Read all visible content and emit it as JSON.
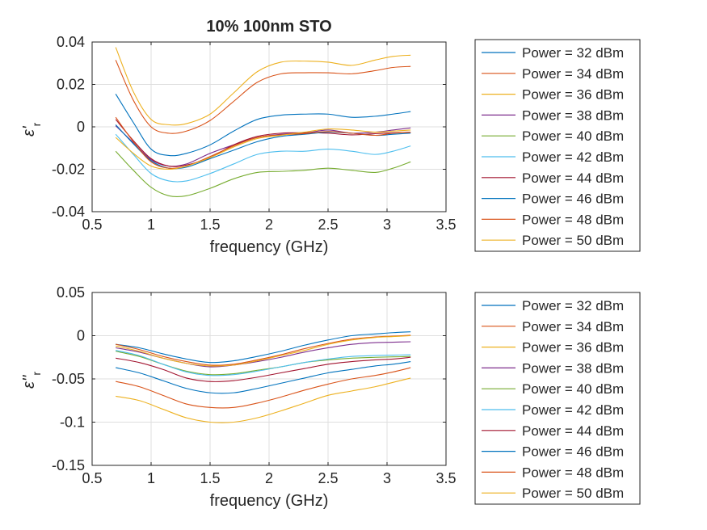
{
  "figure": {
    "title": "10% 100nm STO"
  },
  "chart_data": [
    {
      "type": "line",
      "title": "10% 100nm STO",
      "xlabel": "frequency (GHz)",
      "ylabel": "ε'",
      "ylabel_sub": "r",
      "xlim": [
        0.5,
        3.5
      ],
      "ylim": [
        -0.04,
        0.04
      ],
      "xticks": [
        0.5,
        1,
        1.5,
        2,
        2.5,
        3,
        3.5
      ],
      "xtick_labels": [
        "0.5",
        "1",
        "1.5",
        "2",
        "2.5",
        "3",
        "3.5"
      ],
      "yticks": [
        -0.04,
        -0.02,
        0,
        0.02,
        0.04
      ],
      "ytick_labels": [
        "-0.04",
        "-0.02",
        "0",
        "0.02",
        "0.04"
      ],
      "grid": true,
      "legend_position": "outside-right",
      "series": [
        {
          "name": "Power = 32 dBm",
          "color": "#0072BD",
          "x": [
            0.7,
            0.85,
            1.0,
            1.15,
            1.3,
            1.5,
            1.7,
            1.9,
            2.1,
            2.3,
            2.5,
            2.7,
            2.9,
            3.05,
            3.2
          ],
          "y": [
            0.0155,
            0.002,
            -0.0105,
            -0.0135,
            -0.0125,
            -0.0085,
            -0.002,
            0.0035,
            0.0055,
            0.006,
            0.006,
            0.0045,
            0.005,
            0.006,
            0.0072
          ]
        },
        {
          "name": "Power = 34 dBm",
          "color": "#D95319",
          "x": [
            0.7,
            0.85,
            1.0,
            1.15,
            1.3,
            1.5,
            1.7,
            1.9,
            2.1,
            2.3,
            2.5,
            2.7,
            2.9,
            3.05,
            3.2
          ],
          "y": [
            0.0315,
            0.0125,
            0.0,
            -0.003,
            -0.002,
            0.003,
            0.012,
            0.021,
            0.025,
            0.0255,
            0.0255,
            0.025,
            0.0265,
            0.028,
            0.0285
          ]
        },
        {
          "name": "Power = 36 dBm",
          "color": "#EDB120",
          "x": [
            0.7,
            0.85,
            1.0,
            1.15,
            1.3,
            1.5,
            1.7,
            1.9,
            2.1,
            2.3,
            2.5,
            2.7,
            2.9,
            3.05,
            3.2
          ],
          "y": [
            0.0375,
            0.0165,
            0.0035,
            0.001,
            0.0015,
            0.006,
            0.016,
            0.026,
            0.0305,
            0.031,
            0.0305,
            0.029,
            0.0315,
            0.0332,
            0.0338
          ]
        },
        {
          "name": "Power = 38 dBm",
          "color": "#7E2F8E",
          "x": [
            0.7,
            0.85,
            1.0,
            1.15,
            1.3,
            1.5,
            1.7,
            1.9,
            2.1,
            2.3,
            2.5,
            2.7,
            2.9,
            3.05,
            3.2
          ],
          "y": [
            0.0005,
            -0.0075,
            -0.0155,
            -0.0185,
            -0.0175,
            -0.0125,
            -0.0085,
            -0.005,
            -0.0035,
            -0.003,
            -0.0015,
            -0.003,
            -0.0025,
            -0.0015,
            -0.0005
          ]
        },
        {
          "name": "Power = 40 dBm",
          "color": "#77AC30",
          "x": [
            0.7,
            0.85,
            1.0,
            1.15,
            1.3,
            1.5,
            1.7,
            1.9,
            2.1,
            2.3,
            2.5,
            2.7,
            2.9,
            3.05,
            3.2
          ],
          "y": [
            -0.0115,
            -0.0205,
            -0.0285,
            -0.0325,
            -0.0325,
            -0.029,
            -0.0245,
            -0.0215,
            -0.021,
            -0.0205,
            -0.0195,
            -0.0205,
            -0.0215,
            -0.0195,
            -0.0165
          ]
        },
        {
          "name": "Power = 42 dBm",
          "color": "#4DBEEE",
          "x": [
            0.7,
            0.85,
            1.0,
            1.15,
            1.3,
            1.5,
            1.7,
            1.9,
            2.1,
            2.3,
            2.5,
            2.7,
            2.9,
            3.05,
            3.2
          ],
          "y": [
            -0.0035,
            -0.013,
            -0.022,
            -0.0255,
            -0.0255,
            -0.022,
            -0.0175,
            -0.013,
            -0.0115,
            -0.0115,
            -0.0105,
            -0.0115,
            -0.013,
            -0.0115,
            -0.009
          ]
        },
        {
          "name": "Power = 44 dBm",
          "color": "#A2142F",
          "x": [
            0.7,
            0.85,
            1.0,
            1.15,
            1.3,
            1.5,
            1.7,
            1.9,
            2.1,
            2.3,
            2.5,
            2.7,
            2.9,
            3.05,
            3.2
          ],
          "y": [
            0.0035,
            -0.0065,
            -0.015,
            -0.0185,
            -0.018,
            -0.0145,
            -0.0085,
            -0.0045,
            -0.003,
            -0.0028,
            -0.003,
            -0.0038,
            -0.0032,
            -0.0028,
            -0.0025
          ]
        },
        {
          "name": "Power = 46 dBm",
          "color": "#0072BD",
          "x": [
            0.7,
            0.85,
            1.0,
            1.15,
            1.3,
            1.5,
            1.7,
            1.9,
            2.1,
            2.3,
            2.5,
            2.7,
            2.9,
            3.05,
            3.2
          ],
          "y": [
            0.001,
            -0.008,
            -0.016,
            -0.0195,
            -0.019,
            -0.015,
            -0.011,
            -0.007,
            -0.0045,
            -0.0035,
            -0.0025,
            -0.003,
            -0.004,
            -0.0035,
            -0.003
          ]
        },
        {
          "name": "Power = 48 dBm",
          "color": "#D95319",
          "x": [
            0.7,
            0.85,
            1.0,
            1.15,
            1.3,
            1.5,
            1.7,
            1.9,
            2.1,
            2.3,
            2.5,
            2.7,
            2.9,
            3.05,
            3.2
          ],
          "y": [
            0.0045,
            -0.007,
            -0.0165,
            -0.0195,
            -0.0185,
            -0.014,
            -0.009,
            -0.005,
            -0.0038,
            -0.0032,
            -0.0022,
            -0.003,
            -0.004,
            -0.003,
            -0.0025
          ]
        },
        {
          "name": "Power = 50 dBm",
          "color": "#EDB120",
          "x": [
            0.7,
            0.85,
            1.0,
            1.15,
            1.3,
            1.5,
            1.7,
            1.9,
            2.1,
            2.3,
            2.5,
            2.7,
            2.9,
            3.05,
            3.2
          ],
          "y": [
            -0.005,
            -0.0125,
            -0.0185,
            -0.02,
            -0.0185,
            -0.0145,
            -0.0095,
            -0.0055,
            -0.004,
            -0.0025,
            -0.001,
            -0.0015,
            -0.0025,
            -0.002,
            -0.0015
          ]
        }
      ]
    },
    {
      "type": "line",
      "title": "",
      "xlabel": "frequency (GHz)",
      "ylabel": "ε''",
      "ylabel_sub": "r",
      "xlim": [
        0.5,
        3.5
      ],
      "ylim": [
        -0.15,
        0.05
      ],
      "xticks": [
        0.5,
        1,
        1.5,
        2,
        2.5,
        3,
        3.5
      ],
      "xtick_labels": [
        "0.5",
        "1",
        "1.5",
        "2",
        "2.5",
        "3",
        "3.5"
      ],
      "yticks": [
        -0.15,
        -0.1,
        -0.05,
        0,
        0.05
      ],
      "ytick_labels": [
        "-0.15",
        "-0.1",
        "-0.05",
        "0",
        "0.05"
      ],
      "grid": true,
      "legend_position": "outside-right",
      "series": [
        {
          "name": "Power = 32 dBm",
          "color": "#0072BD",
          "x": [
            0.7,
            0.9,
            1.1,
            1.3,
            1.5,
            1.7,
            1.9,
            2.1,
            2.3,
            2.5,
            2.7,
            2.9,
            3.05,
            3.2
          ],
          "y": [
            -0.01,
            -0.014,
            -0.021,
            -0.027,
            -0.031,
            -0.029,
            -0.024,
            -0.018,
            -0.011,
            -0.005,
            0.0,
            0.002,
            0.0035,
            0.0045
          ]
        },
        {
          "name": "Power = 34 dBm",
          "color": "#D95319",
          "x": [
            0.7,
            0.9,
            1.1,
            1.3,
            1.5,
            1.7,
            1.9,
            2.1,
            2.3,
            2.5,
            2.7,
            2.9,
            3.05,
            3.2
          ],
          "y": [
            -0.053,
            -0.059,
            -0.069,
            -0.079,
            -0.083,
            -0.083,
            -0.078,
            -0.071,
            -0.063,
            -0.056,
            -0.05,
            -0.046,
            -0.042,
            -0.037
          ]
        },
        {
          "name": "Power = 36 dBm",
          "color": "#EDB120",
          "x": [
            0.7,
            0.9,
            1.1,
            1.3,
            1.5,
            1.7,
            1.9,
            2.1,
            2.3,
            2.5,
            2.7,
            2.9,
            3.05,
            3.2
          ],
          "y": [
            -0.07,
            -0.075,
            -0.085,
            -0.095,
            -0.1,
            -0.1,
            -0.095,
            -0.087,
            -0.078,
            -0.069,
            -0.064,
            -0.059,
            -0.054,
            -0.049
          ]
        },
        {
          "name": "Power = 38 dBm",
          "color": "#7E2F8E",
          "x": [
            0.7,
            0.9,
            1.1,
            1.3,
            1.5,
            1.7,
            1.9,
            2.1,
            2.3,
            2.5,
            2.7,
            2.9,
            3.05,
            3.2
          ],
          "y": [
            -0.014,
            -0.019,
            -0.026,
            -0.032,
            -0.036,
            -0.034,
            -0.03,
            -0.025,
            -0.019,
            -0.014,
            -0.01,
            -0.008,
            -0.0075,
            -0.007
          ]
        },
        {
          "name": "Power = 40 dBm",
          "color": "#77AC30",
          "x": [
            0.7,
            0.9,
            1.1,
            1.3,
            1.5,
            1.7,
            1.9,
            2.1,
            2.3,
            2.5,
            2.7,
            2.9,
            3.05,
            3.2
          ],
          "y": [
            -0.018,
            -0.024,
            -0.033,
            -0.041,
            -0.045,
            -0.044,
            -0.04,
            -0.036,
            -0.031,
            -0.028,
            -0.026,
            -0.025,
            -0.0245,
            -0.024
          ]
        },
        {
          "name": "Power = 42 dBm",
          "color": "#4DBEEE",
          "x": [
            0.7,
            0.9,
            1.1,
            1.3,
            1.5,
            1.7,
            1.9,
            2.1,
            2.3,
            2.5,
            2.7,
            2.9,
            3.05,
            3.2
          ],
          "y": [
            -0.017,
            -0.023,
            -0.033,
            -0.042,
            -0.046,
            -0.045,
            -0.041,
            -0.036,
            -0.031,
            -0.027,
            -0.024,
            -0.023,
            -0.0225,
            -0.022
          ]
        },
        {
          "name": "Power = 44 dBm",
          "color": "#A2142F",
          "x": [
            0.7,
            0.9,
            1.1,
            1.3,
            1.5,
            1.7,
            1.9,
            2.1,
            2.3,
            2.5,
            2.7,
            2.9,
            3.05,
            3.2
          ],
          "y": [
            -0.026,
            -0.031,
            -0.039,
            -0.049,
            -0.053,
            -0.052,
            -0.048,
            -0.043,
            -0.038,
            -0.033,
            -0.03,
            -0.028,
            -0.027,
            -0.025
          ]
        },
        {
          "name": "Power = 46 dBm",
          "color": "#0072BD",
          "x": [
            0.7,
            0.9,
            1.1,
            1.3,
            1.5,
            1.7,
            1.9,
            2.1,
            2.3,
            2.5,
            2.7,
            2.9,
            3.05,
            3.2
          ],
          "y": [
            -0.037,
            -0.043,
            -0.052,
            -0.061,
            -0.066,
            -0.066,
            -0.061,
            -0.055,
            -0.049,
            -0.043,
            -0.039,
            -0.035,
            -0.033,
            -0.03
          ]
        },
        {
          "name": "Power = 48 dBm",
          "color": "#D95319",
          "x": [
            0.7,
            0.9,
            1.1,
            1.3,
            1.5,
            1.7,
            1.9,
            2.1,
            2.3,
            2.5,
            2.7,
            2.9,
            3.05,
            3.2
          ],
          "y": [
            -0.01,
            -0.016,
            -0.024,
            -0.03,
            -0.034,
            -0.033,
            -0.028,
            -0.022,
            -0.015,
            -0.009,
            -0.004,
            -0.0015,
            -0.0005,
            0.0005
          ]
        },
        {
          "name": "Power = 50 dBm",
          "color": "#EDB120",
          "x": [
            0.7,
            0.9,
            1.1,
            1.3,
            1.5,
            1.7,
            1.9,
            2.1,
            2.3,
            2.5,
            2.7,
            2.9,
            3.05,
            3.2
          ],
          "y": [
            -0.012,
            -0.018,
            -0.026,
            -0.032,
            -0.035,
            -0.034,
            -0.029,
            -0.023,
            -0.017,
            -0.01,
            -0.005,
            -0.002,
            -0.001,
            0.0
          ]
        }
      ]
    }
  ]
}
